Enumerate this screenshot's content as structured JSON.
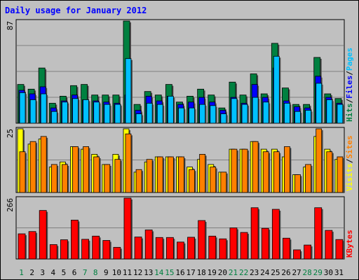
{
  "chart_data": {
    "type": "bar",
    "title": "Daily usage for January 2012",
    "days": [
      "1",
      "2",
      "3",
      "4",
      "5",
      "6",
      "7",
      "8",
      "9",
      "10",
      "11",
      "12",
      "13",
      "14",
      "15",
      "16",
      "17",
      "18",
      "19",
      "20",
      "21",
      "22",
      "23",
      "24",
      "25",
      "26",
      "27",
      "28",
      "29",
      "30",
      "31"
    ],
    "weekend_days": [
      "1",
      "7",
      "8",
      "14",
      "15",
      "21",
      "22",
      "28",
      "29"
    ],
    "panels": [
      {
        "key": "hits_files_pages",
        "max_label": "87",
        "legend": [
          {
            "text": "Hits",
            "color": "#008040"
          },
          {
            "text": "/",
            "color": "#000000"
          },
          {
            "text": "Files",
            "color": "#0000ff"
          },
          {
            "text": "/",
            "color": "#000000"
          },
          {
            "text": "Pages",
            "color": "#00c0ff"
          }
        ],
        "series": [
          {
            "name": "Hits",
            "color": "#008040",
            "values": [
              33,
              29,
              47,
              17,
              23,
              32,
              33,
              24,
              24,
              24,
              87,
              16,
              27,
              24,
              33,
              18,
              23,
              29,
              24,
              13,
              35,
              24,
              42,
              25,
              68,
              30,
              16,
              16,
              56,
              25,
              21
            ]
          },
          {
            "name": "Files",
            "color": "#0000ff",
            "values": [
              28,
              25,
              31,
              13,
              19,
              24,
              20,
              19,
              18,
              17,
              24,
              11,
              23,
              19,
              23,
              16,
              18,
              22,
              18,
              11,
              22,
              17,
              33,
              22,
              47,
              19,
              14,
              13,
              40,
              22,
              17
            ]
          },
          {
            "name": "Pages",
            "color": "#00c0ff",
            "values": [
              26,
              20,
              25,
              10,
              18,
              21,
              20,
              18,
              16,
              16,
              55,
              8,
              17,
              16,
              23,
              13,
              13,
              16,
              15,
              8,
              21,
              16,
              22,
              18,
              57,
              17,
              10,
              11,
              34,
              20,
              16
            ]
          }
        ]
      },
      {
        "key": "visits_sites",
        "max_label": "25",
        "legend": [
          {
            "text": "Visits",
            "color": "#ffff00"
          },
          {
            "text": "/",
            "color": "#000000"
          },
          {
            "text": "Sites",
            "color": "#ff8000"
          }
        ],
        "series": [
          {
            "name": "Visits",
            "color": "#ffff00",
            "values": [
              25,
              19,
              21,
              10,
              12,
              18,
              17,
              15,
              11,
              15,
              25,
              8,
              12,
              14,
              14,
              14,
              10,
              13,
              11,
              8,
              17,
              17,
              20,
              17,
              17,
              14,
              7,
              10,
              22,
              17,
              13
            ]
          },
          {
            "name": "Sites",
            "color": "#ff8000",
            "values": [
              16,
              20,
              22,
              11,
              11,
              18,
              18,
              14,
              11,
              13,
              23,
              9,
              13,
              14,
              14,
              14,
              9,
              15,
              10,
              8,
              17,
              17,
              20,
              16,
              16,
              18,
              7,
              11,
              25,
              16,
              14
            ]
          }
        ]
      },
      {
        "key": "kbytes",
        "max_label": "266",
        "legend": [
          {
            "text": "KBytes",
            "color": "#ff0000"
          }
        ],
        "series": [
          {
            "name": "KBytes",
            "color": "#ff0000",
            "values": [
              110,
              120,
              212,
              63,
              84,
              170,
              86,
              100,
              81,
              51,
              266,
              96,
              127,
              94,
              94,
              74,
              95,
              168,
              100,
              88,
              136,
              116,
              224,
              134,
              217,
              91,
              40,
              61,
              224,
              125,
              85
            ]
          }
        ]
      }
    ]
  },
  "colors": {
    "background": "#c0c0c0",
    "title": "#0000ff",
    "weekend_label": "#008040",
    "weekday_label": "#000000",
    "grid": "#808080",
    "panel_border": "#000000"
  }
}
